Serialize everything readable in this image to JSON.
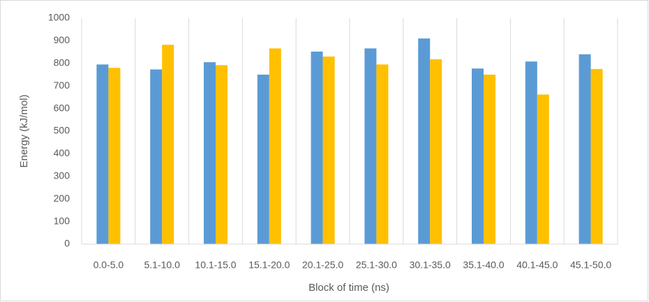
{
  "chart_data": {
    "type": "bar",
    "x_label": "Block of time (ns)",
    "y_label": "Energy (kJ/mol)",
    "categories": [
      "0.0-5.0",
      "5.1-10.0",
      "10.1-15.0",
      "15.1-20.0",
      "20.1-25.0",
      "25.1-30.0",
      "30.1-35.0",
      "35.1-40.0",
      "40.1-45.0",
      "45.1-50.0"
    ],
    "series": [
      {
        "color": "#5b9bd5",
        "values": [
          795,
          773,
          805,
          750,
          852,
          866,
          910,
          777,
          808,
          840
        ]
      },
      {
        "color": "#ffc000",
        "values": [
          780,
          882,
          792,
          866,
          830,
          795,
          818,
          750,
          662,
          775
        ]
      }
    ],
    "ylim": [
      0,
      1000
    ],
    "yticks": [
      0,
      100,
      200,
      300,
      400,
      500,
      600,
      700,
      800,
      900,
      1000
    ],
    "grid": "x"
  }
}
